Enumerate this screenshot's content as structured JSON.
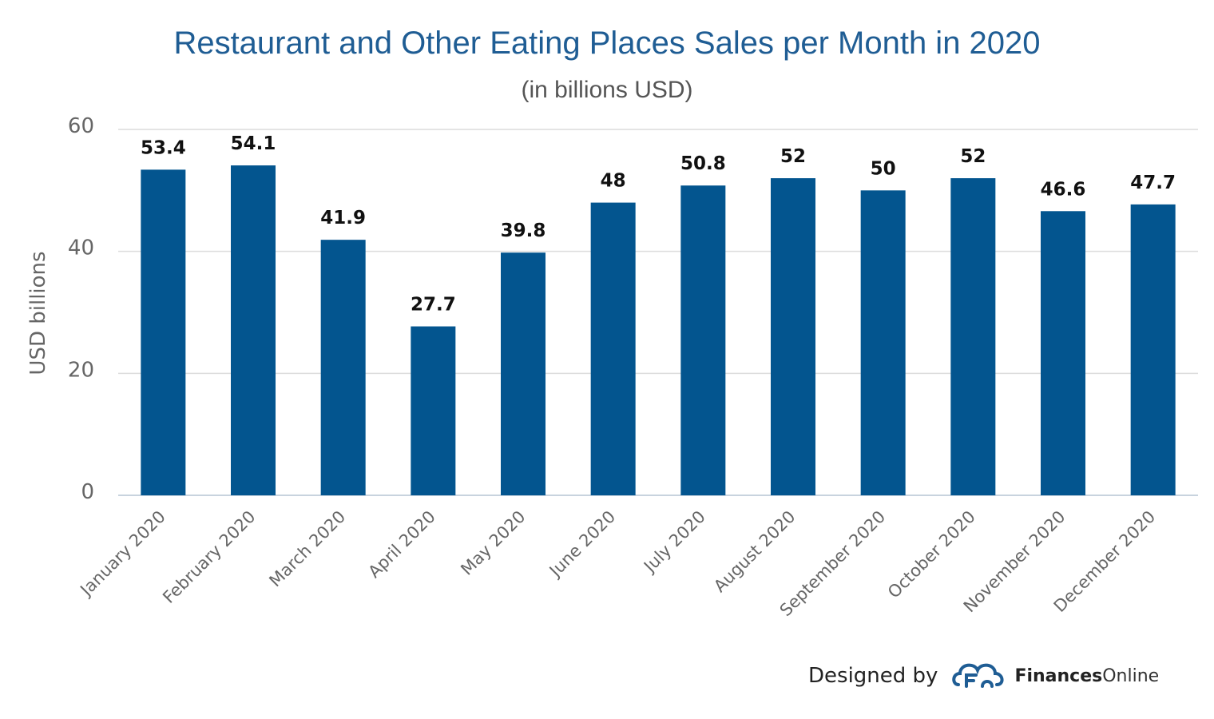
{
  "chart_data": {
    "type": "bar",
    "title": "Restaurant and Other Eating Places Sales per Month in 2020",
    "subtitle": "(in billions USD)",
    "xlabel": "",
    "ylabel": "USD billions",
    "ylim": [
      0,
      60
    ],
    "yticks": [
      "0",
      "20",
      "40",
      "60"
    ],
    "grid": true,
    "categories": [
      "January 2020",
      "February 2020",
      "March 2020",
      "April 2020",
      "May 2020",
      "June 2020",
      "July 2020",
      "August 2020",
      "September 2020",
      "October 2020",
      "November 2020",
      "December 2020"
    ],
    "values": [
      53.4,
      54.1,
      41.9,
      27.7,
      39.8,
      48,
      50.8,
      52,
      50,
      52,
      46.6,
      47.7
    ],
    "value_labels": [
      "53.4",
      "54.1",
      "41.9",
      "27.7",
      "39.8",
      "48",
      "50.8",
      "52",
      "50",
      "52",
      "46.6",
      "47.7"
    ],
    "bar_color": "#03558f",
    "grid_color": "#dcdcdc"
  },
  "footer": {
    "designed_by": "Designed by",
    "brand_bold": "Finances",
    "brand_light": "Online",
    "logo_icon": "cloud-f-logo-icon"
  }
}
